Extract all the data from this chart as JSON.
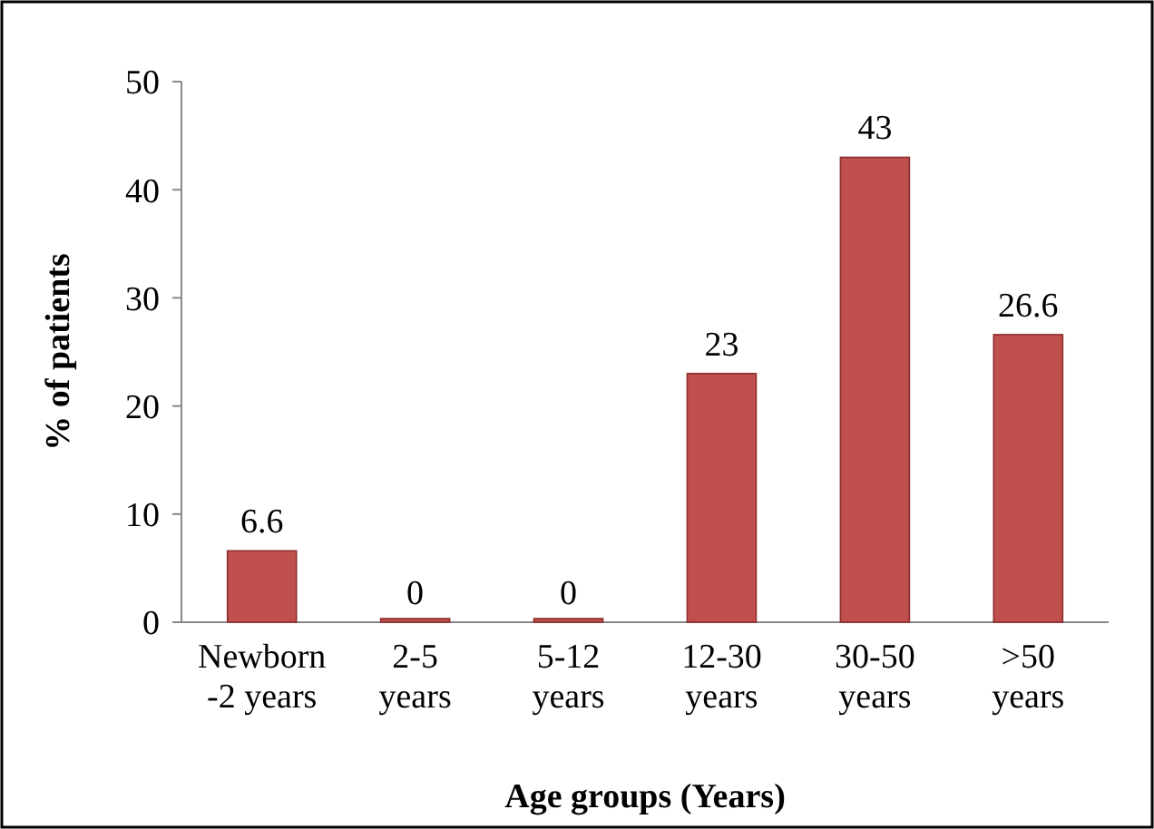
{
  "chart_data": {
    "type": "bar",
    "categories": [
      "Newborn -2 years",
      "2-5 years",
      "5-12 years",
      "12-30 years",
      "30-50 years",
      ">50 years"
    ],
    "values": [
      6.6,
      0,
      0,
      23,
      43,
      26.6
    ],
    "color": "#c0504d",
    "ylim": [
      0,
      50
    ],
    "yticks": [
      0,
      10,
      20,
      30,
      40,
      50
    ],
    "data_labels": true,
    "grid": false,
    "xlabel": "Age groups (Years)",
    "ylabel": "% of patients"
  }
}
